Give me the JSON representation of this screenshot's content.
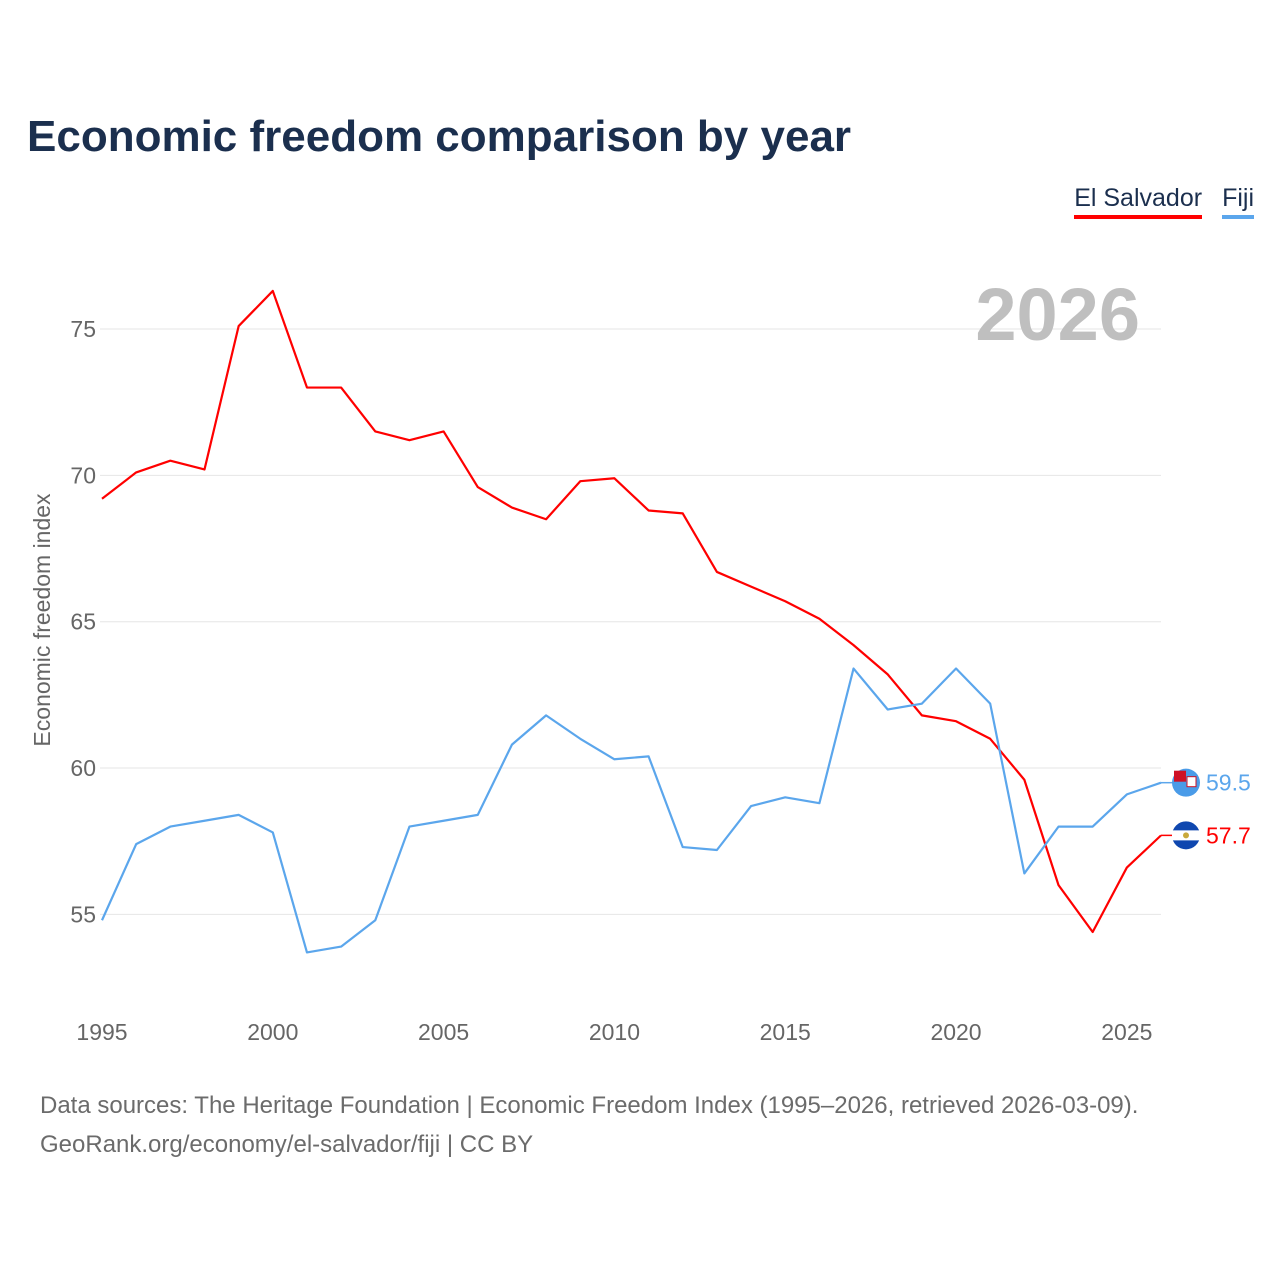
{
  "chart_data": {
    "type": "line",
    "title": "Economic freedom comparison by year",
    "xlabel": "",
    "ylabel": "Economic freedom index",
    "xlim": [
      1995,
      2026
    ],
    "ylim": [
      52,
      77.5
    ],
    "yticks": [
      55,
      60,
      65,
      70,
      75
    ],
    "xticks": [
      1995,
      2000,
      2005,
      2010,
      2015,
      2020,
      2025
    ],
    "grid": true,
    "legend_position": "top-right",
    "year_watermark": "2026",
    "x": [
      1995,
      1996,
      1997,
      1998,
      1999,
      2000,
      2001,
      2002,
      2003,
      2004,
      2005,
      2006,
      2007,
      2008,
      2009,
      2010,
      2011,
      2012,
      2013,
      2014,
      2015,
      2016,
      2017,
      2018,
      2019,
      2020,
      2021,
      2022,
      2023,
      2024,
      2025,
      2026
    ],
    "series": [
      {
        "name": "El Salvador",
        "color": "#ff0000",
        "end_label": "57.7",
        "values": [
          69.2,
          70.1,
          70.5,
          70.2,
          75.1,
          76.3,
          73.0,
          73.0,
          71.5,
          71.2,
          71.5,
          69.6,
          68.9,
          68.5,
          69.8,
          69.9,
          68.8,
          68.7,
          66.7,
          66.2,
          65.7,
          65.1,
          64.2,
          63.2,
          61.8,
          61.6,
          61.0,
          59.6,
          56.0,
          54.4,
          56.6,
          57.7
        ]
      },
      {
        "name": "Fiji",
        "color": "#5ba6ec",
        "end_label": "59.5",
        "values": [
          54.8,
          57.4,
          58.0,
          58.2,
          58.4,
          57.8,
          53.7,
          53.9,
          54.8,
          58.0,
          58.2,
          58.4,
          60.8,
          61.8,
          61.0,
          60.3,
          60.4,
          57.3,
          57.2,
          58.7,
          59.0,
          58.8,
          63.4,
          62.0,
          62.2,
          63.4,
          62.2,
          56.4,
          58.0,
          58.0,
          59.1,
          59.5
        ]
      }
    ]
  },
  "source": {
    "line1": "Data sources: The Heritage Foundation | Economic Freedom Index (1995–2026, retrieved 2026-03-09).",
    "line2": "GeoRank.org/economy/el-salvador/fiji | CC BY"
  }
}
